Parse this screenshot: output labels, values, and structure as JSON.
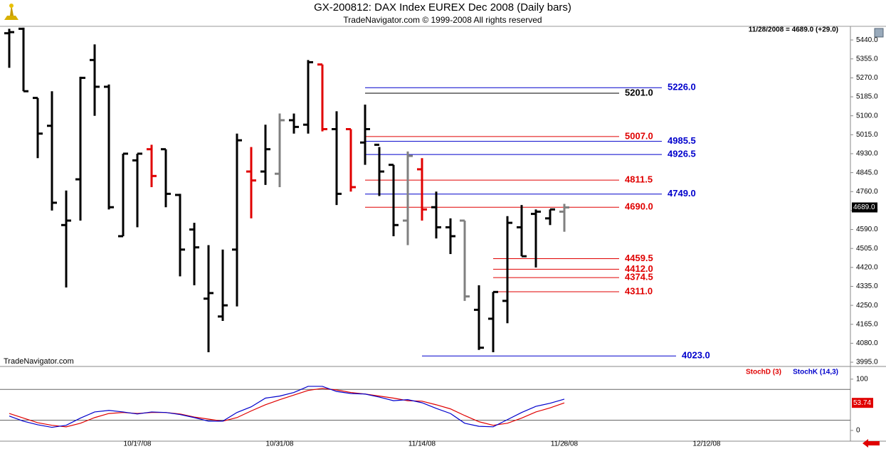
{
  "header": {
    "status": "11/28/2008 = 4689.0 (+29.0)",
    "watermark": "TradeNavigator.com"
  },
  "chart_data": [
    {
      "type": "ohlc",
      "title": "GX-200812:  DAX Index EUREX Dec 2008  (Daily bars)",
      "subtitle": "TradeNavigator.com © 1999-2008 All rights reserved",
      "xlim": [
        -0.65,
        59.1
      ],
      "xticks": [
        {
          "value": 9,
          "label": "10/17/08"
        },
        {
          "value": 19,
          "label": "10/31/08"
        },
        {
          "value": 29,
          "label": "11/14/08"
        },
        {
          "value": 39,
          "label": "11/28/08"
        },
        {
          "value": 49,
          "label": "12/12/08"
        }
      ],
      "ylim": [
        3976,
        5501
      ],
      "yticks": [
        {
          "value": 3995,
          "label": "3995.0"
        },
        {
          "value": 4080,
          "label": "4080.0"
        },
        {
          "value": 4165,
          "label": "4165.0"
        },
        {
          "value": 4250,
          "label": "4250.0"
        },
        {
          "value": 4335,
          "label": "4335.0"
        },
        {
          "value": 4420,
          "label": "4420.0"
        },
        {
          "value": 4505,
          "label": "4505.0"
        },
        {
          "value": 4590,
          "label": "4590.0"
        },
        {
          "value": 4675,
          "label": "4675.0"
        },
        {
          "value": 4760,
          "label": "4760.0"
        },
        {
          "value": 4845,
          "label": "4845.0"
        },
        {
          "value": 4930,
          "label": "4930.0"
        },
        {
          "value": 5015,
          "label": "5015.0"
        },
        {
          "value": 5100,
          "label": "5100.0"
        },
        {
          "value": 5185,
          "label": "5185.0"
        },
        {
          "value": 5270,
          "label": "5270.0"
        },
        {
          "value": 5355,
          "label": "5355.0"
        },
        {
          "value": 5440,
          "label": "5440.0"
        }
      ],
      "high": [
        5490,
        5495,
        5180,
        5210,
        4765,
        5275,
        5420,
        5240,
        4930,
        4930,
        4970,
        4950,
        4750,
        4620,
        4520,
        4500,
        5020,
        4960,
        5060,
        5110,
        5110,
        5350,
        5330,
        5120,
        5040,
        5150,
        4960,
        4880,
        4940,
        4910,
        4760,
        4640,
        4630,
        4340,
        4310,
        4650,
        4700,
        4680,
        4680,
        4705
      ],
      "low": [
        5315,
        5210,
        4910,
        4675,
        4330,
        4630,
        5100,
        4680,
        4560,
        4600,
        4780,
        4690,
        4380,
        4340,
        4040,
        4180,
        4245,
        4640,
        4790,
        4780,
        5020,
        5020,
        5030,
        4700,
        4760,
        4880,
        4740,
        4560,
        4520,
        4630,
        4550,
        4480,
        4270,
        4050,
        4040,
        4170,
        4470,
        4420,
        4610,
        4580
      ],
      "open": [
        5470,
        5490,
        5180,
        5055,
        4610,
        4815,
        5350,
        5230,
        4560,
        4900,
        4950,
        4950,
        4745,
        4590,
        4280,
        4200,
        4500,
        4850,
        4850,
        4840,
        5080,
        5060,
        5330,
        5040,
        5040,
        4980,
        4970,
        4880,
        4630,
        4860,
        4690,
        4600,
        4630,
        4230,
        4190,
        4270,
        4600,
        4660,
        4640,
        4670
      ],
      "close": [
        5475,
        5210,
        5020,
        4710,
        4630,
        5270,
        5230,
        4690,
        4930,
        4930,
        4830,
        4750,
        4500,
        4510,
        4305,
        4250,
        4990,
        4810,
        4950,
        5080,
        5050,
        5340,
        5040,
        4750,
        4780,
        5040,
        4850,
        4610,
        4920,
        4680,
        4600,
        4560,
        4290,
        4060,
        4310,
        4620,
        4470,
        4670,
        4680,
        4689
      ],
      "colors": [
        "#000000",
        "#000000",
        "#000000",
        "#000000",
        "#000000",
        "#000000",
        "#000000",
        "#000000",
        "#000000",
        "#000000",
        "#e00000",
        "#000000",
        "#000000",
        "#000000",
        "#000000",
        "#000000",
        "#000000",
        "#e00000",
        "#000000",
        "#808080",
        "#000000",
        "#000000",
        "#e00000",
        "#000000",
        "#e00000",
        "#000000",
        "#000000",
        "#000000",
        "#808080",
        "#e00000",
        "#000000",
        "#000000",
        "#808080",
        "#000000",
        "#000000",
        "#000000",
        "#000000",
        "#000000",
        "#000000",
        "#808080"
      ],
      "levels": [
        {
          "value": 5226.0,
          "label": "5226.0",
          "color": "#0000cc",
          "from": 25,
          "to": 45.85
        },
        {
          "value": 5201.0,
          "label": "5201.0",
          "color": "#000000",
          "from": 25,
          "to": 42.85
        },
        {
          "value": 5007.0,
          "label": "5007.0",
          "color": "#e00000",
          "from": 25,
          "to": 42.85
        },
        {
          "value": 4985.5,
          "label": "4985.5",
          "color": "#0000cc",
          "from": 25,
          "to": 45.85
        },
        {
          "value": 4926.5,
          "label": "4926.5",
          "color": "#0000cc",
          "from": 25,
          "to": 45.85
        },
        {
          "value": 4811.5,
          "label": "4811.5",
          "color": "#e00000",
          "from": 25,
          "to": 42.85
        },
        {
          "value": 4749.0,
          "label": "4749.0",
          "color": "#0000cc",
          "from": 25,
          "to": 45.85
        },
        {
          "value": 4690.0,
          "label": "4690.0",
          "color": "#e00000",
          "from": 25,
          "to": 42.85
        },
        {
          "value": 4459.5,
          "label": "4459.5",
          "color": "#e00000",
          "from": 34,
          "to": 42.85
        },
        {
          "value": 4412.0,
          "label": "4412.0",
          "color": "#e00000",
          "from": 34,
          "to": 42.85
        },
        {
          "value": 4374.5,
          "label": "4374.5",
          "color": "#e00000",
          "from": 34,
          "to": 42.85
        },
        {
          "value": 4311.0,
          "label": "4311.0",
          "color": "#e00000",
          "from": 34,
          "to": 42.85
        },
        {
          "value": 4023.0,
          "label": "4023.0",
          "color": "#0000cc",
          "from": 29,
          "to": 46.85
        }
      ],
      "last": {
        "value": 4689,
        "label": "4689.0"
      }
    },
    {
      "type": "line",
      "xlim": [
        -0.65,
        59.1
      ],
      "ylim": [
        -21,
        122
      ],
      "yticks": [
        0,
        100
      ],
      "grid_levels": [
        20,
        80
      ],
      "series": [
        {
          "name": "StochD (3)",
          "color": "#e00000",
          "values": [
            33,
            24,
            15,
            10,
            7,
            14,
            25,
            33,
            35,
            33,
            35,
            35,
            32,
            26,
            22,
            18,
            25,
            38,
            50,
            60,
            69,
            78,
            82,
            79,
            74,
            71,
            67,
            63,
            58,
            57,
            50,
            42,
            29,
            17,
            10,
            14,
            24,
            36,
            44,
            53.74
          ]
        },
        {
          "name": "StochK (14,3)",
          "color": "#0000cc",
          "values": [
            28,
            18,
            11,
            6,
            10,
            24,
            36,
            39,
            36,
            32,
            36,
            35,
            31,
            25,
            18,
            18,
            35,
            46,
            63,
            67,
            74,
            86,
            86,
            76,
            72,
            71,
            65,
            58,
            60,
            54,
            43,
            33,
            14,
            8,
            7,
            21,
            35,
            47,
            53,
            61
          ]
        }
      ],
      "last": 53.74
    }
  ]
}
